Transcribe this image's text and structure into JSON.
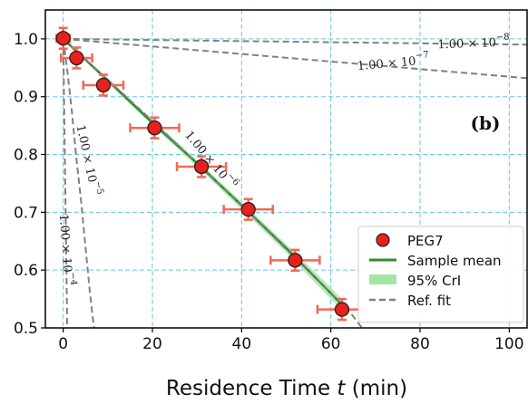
{
  "chart_data": {
    "type": "scatter",
    "panel_label": "(b)",
    "xlabel": {
      "text": "Residence Time ",
      "var": "t",
      "unit": " (min)"
    },
    "ylabel": "",
    "xlim": [
      -4,
      104
    ],
    "ylim": [
      0.5,
      1.05
    ],
    "x_ticks": [
      0,
      20,
      40,
      60,
      80,
      100
    ],
    "y_ticks": [
      0.5,
      0.6,
      0.7,
      0.8,
      0.9,
      1.0
    ],
    "x_tick_labels": [
      "0",
      "20",
      "40",
      "60",
      "80",
      "100"
    ],
    "y_tick_labels": [
      "0.5",
      "0.6",
      "0.7",
      "0.8",
      "0.9",
      "1.0"
    ],
    "grid": true,
    "legend_position": "lower-right",
    "series": [
      {
        "name": "PEG7",
        "kind": "scatter",
        "color": "#e8201e",
        "points": [
          {
            "x": 0,
            "y": 1.001,
            "xerr": 1.5,
            "yerr": 0.018
          },
          {
            "x": 3,
            "y": 0.967,
            "xerr": 3.5,
            "yerr": 0.018
          },
          {
            "x": 9,
            "y": 0.92,
            "xerr": 4.5,
            "yerr": 0.018
          },
          {
            "x": 20.5,
            "y": 0.846,
            "xerr": 5.5,
            "yerr": 0.018
          },
          {
            "x": 31,
            "y": 0.779,
            "xerr": 5.5,
            "yerr": 0.018
          },
          {
            "x": 41.5,
            "y": 0.705,
            "xerr": 5.5,
            "yerr": 0.018
          },
          {
            "x": 52,
            "y": 0.617,
            "xerr": 5.5,
            "yerr": 0.018
          },
          {
            "x": 62.5,
            "y": 0.532,
            "xerr": 5.5,
            "yerr": 0.018
          }
        ]
      },
      {
        "name": "Sample mean",
        "kind": "line",
        "color": "#2e8b2e",
        "x": [
          0,
          10,
          20,
          30,
          40,
          50,
          60,
          62.5
        ],
        "y": [
          1.0,
          0.928,
          0.855,
          0.785,
          0.712,
          0.638,
          0.56,
          0.54
        ]
      },
      {
        "name": "95% CrI",
        "kind": "band",
        "color": "#a3e6a3",
        "x": [
          0,
          10,
          20,
          30,
          40,
          50,
          60,
          62.5
        ],
        "low": [
          0.998,
          0.924,
          0.85,
          0.779,
          0.705,
          0.63,
          0.55,
          0.53
        ],
        "high": [
          1.0,
          0.932,
          0.86,
          0.79,
          0.718,
          0.645,
          0.57,
          0.55
        ]
      },
      {
        "name": "Ref. fit",
        "kind": "reference",
        "color": "#808080",
        "curves": [
          {
            "k": "1.00e-8",
            "x": [
              0,
              104
            ],
            "y": [
              1.0,
              0.99
            ]
          },
          {
            "k": "1.00e-7",
            "x": [
              0,
              104
            ],
            "y": [
              1.0,
              0.932
            ]
          },
          {
            "k": "1.00e-6",
            "x": [
              0,
              20,
              40,
              60,
              64,
              67
            ],
            "y": [
              1.0,
              0.858,
              0.712,
              0.56,
              0.53,
              0.5
            ]
          },
          {
            "k": "1.00e-5",
            "x": [
              0,
              1,
              2,
              3,
              4,
              5,
              6,
              6.9
            ],
            "y": [
              1.0,
              0.94,
              0.87,
              0.79,
              0.72,
              0.64,
              0.56,
              0.5
            ]
          },
          {
            "k": "1.00e-4",
            "x": [
              0,
              0.2,
              0.4,
              0.6,
              0.8,
              0.9
            ],
            "y": [
              1.0,
              0.89,
              0.78,
              0.67,
              0.56,
              0.5
            ]
          }
        ]
      }
    ],
    "reference_labels": [
      {
        "base": "1.00 × 10",
        "exp": "−8",
        "x": 92,
        "y": 0.992,
        "rotate": -2
      },
      {
        "base": "1.00 × 10",
        "exp": "−7",
        "x": 74,
        "y": 0.958,
        "rotate": -5
      },
      {
        "base": "1.00 × 10",
        "exp": "−6",
        "x": 33,
        "y": 0.79,
        "rotate": 50
      },
      {
        "base": "1.00 × 10",
        "exp": "−5",
        "x": 5.5,
        "y": 0.79,
        "rotate": 78
      },
      {
        "base": "1.00 × 10",
        "exp": "−4",
        "x": 0.6,
        "y": 0.635,
        "rotate": 86
      }
    ]
  }
}
